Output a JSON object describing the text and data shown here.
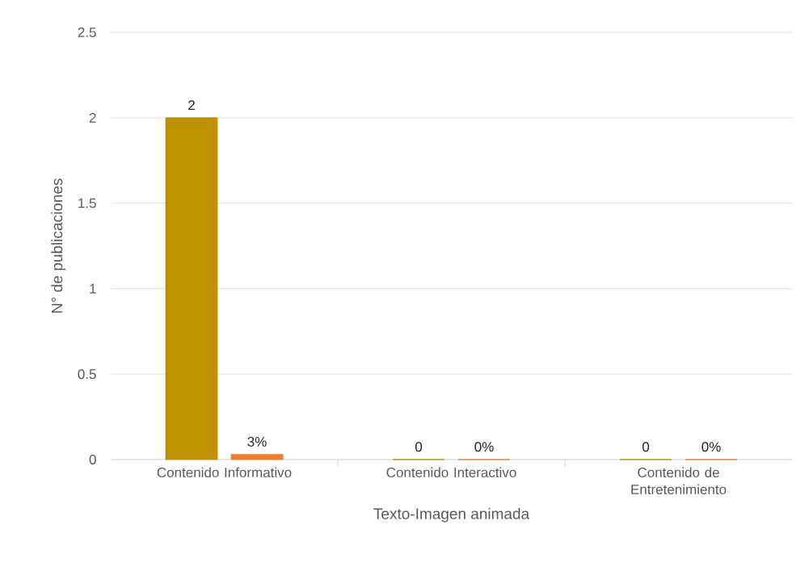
{
  "chart_data": {
    "type": "bar",
    "xlabel": "Texto-Imagen animada",
    "ylabel": "N° de publicaciones",
    "categories": [
      "Contenido Informativo",
      "Contenido Interactivo",
      "Contenido de Entretenimiento"
    ],
    "series": [
      {
        "color": "#bf9000",
        "values": [
          2,
          0,
          0
        ],
        "value_labels": [
          "2",
          "0",
          "0"
        ]
      },
      {
        "color": "#ed7d31",
        "values": [
          0.03,
          0,
          0
        ],
        "value_labels": [
          "3%",
          "0%",
          "0%"
        ]
      }
    ],
    "ylim": [
      0,
      2.5
    ],
    "yticks": [
      0,
      0.5,
      1,
      1.5,
      2,
      2.5
    ],
    "grid": "y"
  }
}
